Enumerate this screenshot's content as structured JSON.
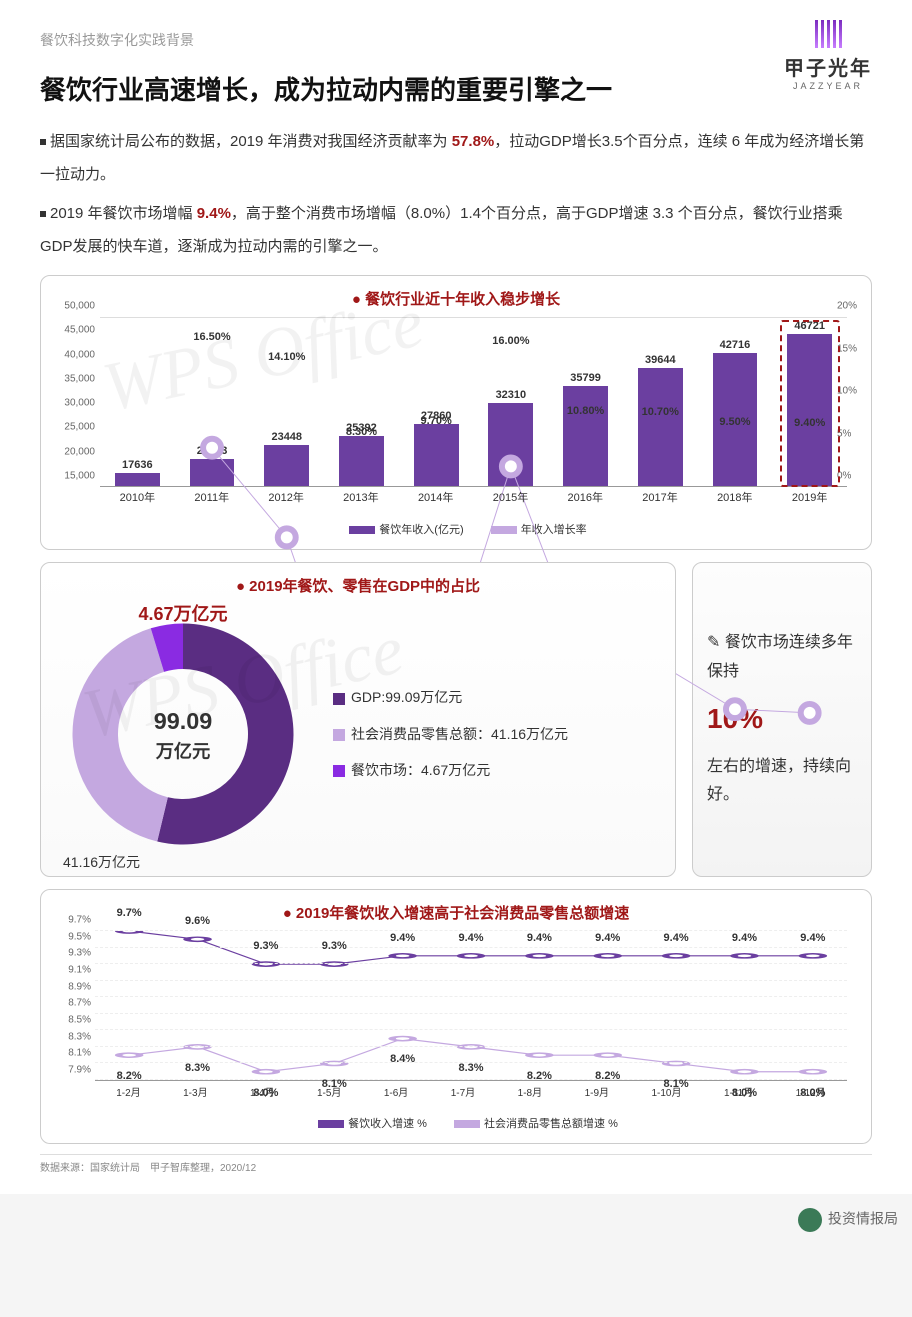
{
  "header": {
    "breadcrumb": "餐饮科技数字化实践背景",
    "logo_text": "甲子光年",
    "logo_sub": "JAZZYEAR"
  },
  "title": "餐饮行业高速增长，成为拉动内需的重要引擎之一",
  "intro": {
    "p1_a": "据国家统计局公布的数据，2019 年消费对我国经济贡献率为 ",
    "p1_hl": "57.8%",
    "p1_b": "，拉动GDP增长3.5个百分点，连续 6 年成为经济增长第一拉动力。",
    "p2_a": "2019 年餐饮市场增幅 ",
    "p2_hl": "9.4%",
    "p2_b": "，高于整个消费市场增幅（8.0%）1.4个百分点，高于GDP增速 3.3 个百分点，餐饮行业搭乘GDP发展的快车道，逐渐成为拉动内需的引擎之一。"
  },
  "bar_chart": {
    "title": "餐饮行业近十年收入稳步增长",
    "y_left": {
      "min": 15000,
      "max": 50000,
      "ticks": [
        15000,
        20000,
        25000,
        30000,
        35000,
        40000,
        45000,
        50000
      ]
    },
    "y_right": {
      "min": 0,
      "max": 20,
      "ticks": [
        0,
        5,
        10,
        15,
        20
      ],
      "suffix": "%"
    },
    "categories": [
      "2010年",
      "2011年",
      "2012年",
      "2013年",
      "2014年",
      "2015年",
      "2016年",
      "2017年",
      "2018年",
      "2019年"
    ],
    "revenue": [
      17636,
      20543,
      23448,
      25392,
      27860,
      32310,
      35799,
      39644,
      42716,
      46721
    ],
    "growth": [
      null,
      16.5,
      14.1,
      8.3,
      9.7,
      16.0,
      10.8,
      10.7,
      9.5,
      9.4
    ],
    "growth_labels": [
      "",
      "16.50%",
      "14.10%",
      "8.30%",
      "9.70%",
      "16.00%",
      "10.80%",
      "10.70%",
      "9.50%",
      "9.40%"
    ],
    "bar_color": "#6b3fa0",
    "line_color": "#c4a8e0",
    "highlight_index": 9,
    "legend_bar": "餐饮年收入(亿元)",
    "legend_line": "年收入增长率"
  },
  "donut": {
    "title": "2019年餐饮、零售在GDP中的占比",
    "center_value": "99.09",
    "center_unit": "万亿元",
    "top_label": "4.67万亿元",
    "bottom_label": "41.16万亿元",
    "slices": [
      {
        "label": "GDP:99.09万亿元",
        "color": "#5a2d82",
        "value": 53.26
      },
      {
        "label": "社会消费品零售总额：41.16万亿元",
        "color": "#c4a8e0",
        "value": 41.16
      },
      {
        "label": "餐饮市场：4.67万亿元",
        "color": "#8a2be2",
        "value": 4.67
      }
    ]
  },
  "side_note": {
    "line1": "✎ 餐饮市场连续多年保持",
    "big": "10%",
    "line2": "左右的增速，持续向好。"
  },
  "line_chart": {
    "title": "2019年餐饮收入增速高于社会消费品零售总额增速",
    "y": {
      "min": 7.9,
      "max": 9.7,
      "ticks": [
        7.9,
        8.1,
        8.3,
        8.5,
        8.7,
        8.9,
        9.1,
        9.3,
        9.5,
        9.7
      ],
      "suffix": "%"
    },
    "categories": [
      "1-2月",
      "1-3月",
      "1-4月",
      "1-5月",
      "1-6月",
      "1-7月",
      "1-8月",
      "1-9月",
      "1-10月",
      "1-11月",
      "1-12月"
    ],
    "series_a": {
      "name": "餐饮收入增速 %",
      "color": "#6b3fa0",
      "values": [
        9.7,
        9.6,
        9.3,
        9.3,
        9.4,
        9.4,
        9.4,
        9.4,
        9.4,
        9.4,
        9.4
      ]
    },
    "series_b": {
      "name": "社会消费品零售总额增速 %",
      "color": "#c4a8e0",
      "values": [
        8.2,
        8.3,
        8.0,
        8.1,
        8.4,
        8.3,
        8.2,
        8.2,
        8.1,
        8.0,
        8.0
      ]
    }
  },
  "source": "数据来源：国家统计局　甲子智库整理，2020/12",
  "wechat": "投资情报局",
  "watermark": "WPS Office"
}
